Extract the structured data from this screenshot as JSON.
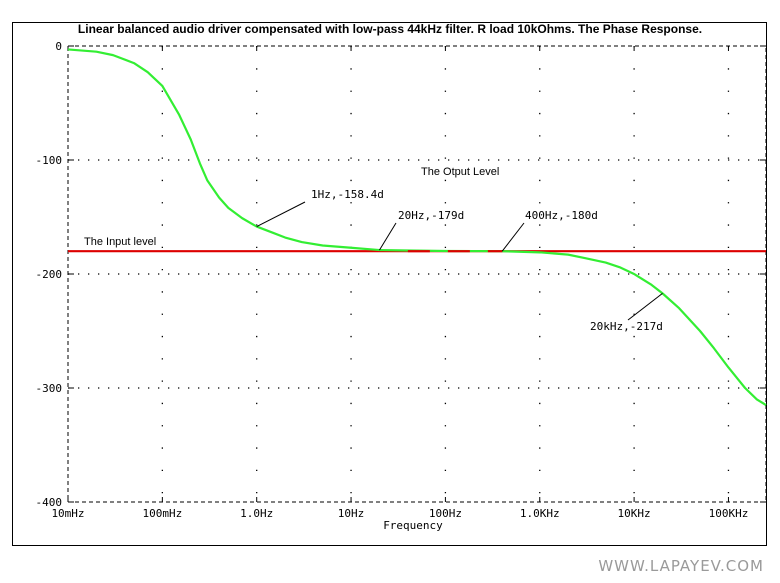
{
  "chart_data": {
    "type": "line",
    "title": "Linear balanced audio driver compensated with low-pass 44kHz filter. R load 10kOhms. The Phase Response.",
    "xlabel": "Frequency",
    "ylabel": "",
    "xscale": "log",
    "xlim": [
      0.01,
      250000
    ],
    "ylim": [
      -400,
      0
    ],
    "grid": "dotted",
    "x_ticks": [
      {
        "value": 0.01,
        "label": "10mHz"
      },
      {
        "value": 0.1,
        "label": "100mHz"
      },
      {
        "value": 1,
        "label": "1.0Hz"
      },
      {
        "value": 10,
        "label": "10Hz"
      },
      {
        "value": 100,
        "label": "100Hz"
      },
      {
        "value": 1000,
        "label": "1.0KHz"
      },
      {
        "value": 10000,
        "label": "10KHz"
      },
      {
        "value": 100000,
        "label": "100KHz"
      }
    ],
    "y_ticks": [
      {
        "value": 0,
        "label": "0"
      },
      {
        "value": -100,
        "label": "-100"
      },
      {
        "value": -200,
        "label": "-200"
      },
      {
        "value": -300,
        "label": "-300"
      },
      {
        "value": -400,
        "label": "-400"
      }
    ],
    "series": [
      {
        "name": "The Otput Level",
        "color": "#33ee33",
        "x": [
          0.01,
          0.02,
          0.03,
          0.05,
          0.07,
          0.1,
          0.15,
          0.2,
          0.25,
          0.3,
          0.4,
          0.5,
          0.7,
          1,
          1.5,
          2,
          3,
          5,
          10,
          20,
          50,
          100,
          400,
          1000,
          2000,
          3000,
          5000,
          7000,
          10000,
          15000,
          20000,
          30000,
          50000,
          70000,
          100000,
          150000,
          200000,
          250000
        ],
        "y": [
          -3,
          -5,
          -8,
          -15,
          -23,
          -35,
          -60,
          -82,
          -103,
          -118,
          -133,
          -142,
          -151,
          -158.4,
          -164,
          -168,
          -172,
          -175,
          -177,
          -179,
          -179.5,
          -179.8,
          -180,
          -181,
          -183,
          -186,
          -190,
          -194,
          -200,
          -209,
          -217,
          -230,
          -250,
          -265,
          -282,
          -300,
          -310,
          -315
        ]
      },
      {
        "name": "The Input level",
        "color": "#dd0000",
        "x": [
          0.01,
          250000
        ],
        "y": [
          -180,
          -180
        ]
      }
    ],
    "annotations": [
      {
        "text": "1Hz,-158.4d",
        "x": 1,
        "y": -158.4
      },
      {
        "text": "20Hz,-179d",
        "x": 20,
        "y": -179
      },
      {
        "text": "400Hz,-180d",
        "x": 400,
        "y": -180
      },
      {
        "text": "20kHz,-217d",
        "x": 20000,
        "y": -217
      }
    ],
    "labels": {
      "output": "The Otput Level",
      "input": "The Input level"
    }
  },
  "watermark": "WWW.LAPAYEV.COM"
}
